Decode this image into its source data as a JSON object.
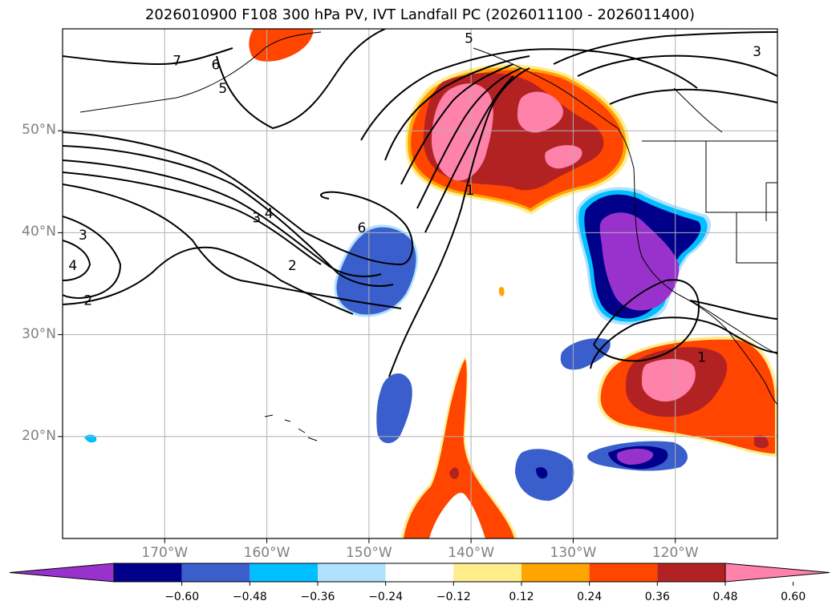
{
  "title": "2026010900 F108 300 hPa PV, IVT Landfall PC (2026011100 - 2026011400)",
  "map": {
    "projection": "PlateCarree",
    "lon_range": [
      -180,
      -110
    ],
    "lat_range": [
      10,
      60
    ],
    "gridlines": true,
    "lon_ticks": [
      {
        "value": -170,
        "label": "170°W"
      },
      {
        "value": -160,
        "label": "160°W"
      },
      {
        "value": -150,
        "label": "150°W"
      },
      {
        "value": -140,
        "label": "140°W"
      },
      {
        "value": -130,
        "label": "130°W"
      },
      {
        "value": -120,
        "label": "120°W"
      }
    ],
    "lat_ticks": [
      {
        "value": 50,
        "label": "50°N"
      },
      {
        "value": 40,
        "label": "40°N"
      },
      {
        "value": 30,
        "label": "30°N"
      },
      {
        "value": 20,
        "label": "20°N"
      }
    ],
    "pv_contour_labels": [
      {
        "text": "7",
        "lon": -168.8,
        "lat": 56.9
      },
      {
        "text": "6",
        "lon": -165.0,
        "lat": 56.5
      },
      {
        "text": "5",
        "lon": -164.3,
        "lat": 54.2
      },
      {
        "text": "5",
        "lon": -140.2,
        "lat": 59.1
      },
      {
        "text": "3",
        "lon": -112.0,
        "lat": 57.8
      },
      {
        "text": "4",
        "lon": -159.8,
        "lat": 41.9
      },
      {
        "text": "3",
        "lon": -161.0,
        "lat": 41.5
      },
      {
        "text": "6",
        "lon": -150.7,
        "lat": 40.5
      },
      {
        "text": "2",
        "lon": -157.5,
        "lat": 36.8
      },
      {
        "text": "3",
        "lon": -178.0,
        "lat": 39.8
      },
      {
        "text": "4",
        "lon": -179.0,
        "lat": 36.8
      },
      {
        "text": "2",
        "lon": -177.5,
        "lat": 33.4
      },
      {
        "text": "1",
        "lon": -140.1,
        "lat": 44.2
      },
      {
        "text": "1",
        "lon": -117.4,
        "lat": 27.8
      }
    ]
  },
  "colorbar": {
    "levels": [
      -0.6,
      -0.48,
      -0.36,
      -0.24,
      -0.12,
      0.12,
      0.24,
      0.36,
      0.48,
      0.6
    ],
    "tick_labels": [
      "−0.60",
      "−0.48",
      "−0.36",
      "−0.24",
      "−0.12",
      "0.12",
      "0.24",
      "0.36",
      "0.48",
      "0.60"
    ],
    "colors": [
      "#9932cc",
      "#00008b",
      "#3a5fcd",
      "#00bfff",
      "#b0e2ff",
      "#ffffff",
      "#ffec8b",
      "#ffa500",
      "#ff4500",
      "#b22222",
      "#ff82ab"
    ],
    "extend": "both"
  }
}
